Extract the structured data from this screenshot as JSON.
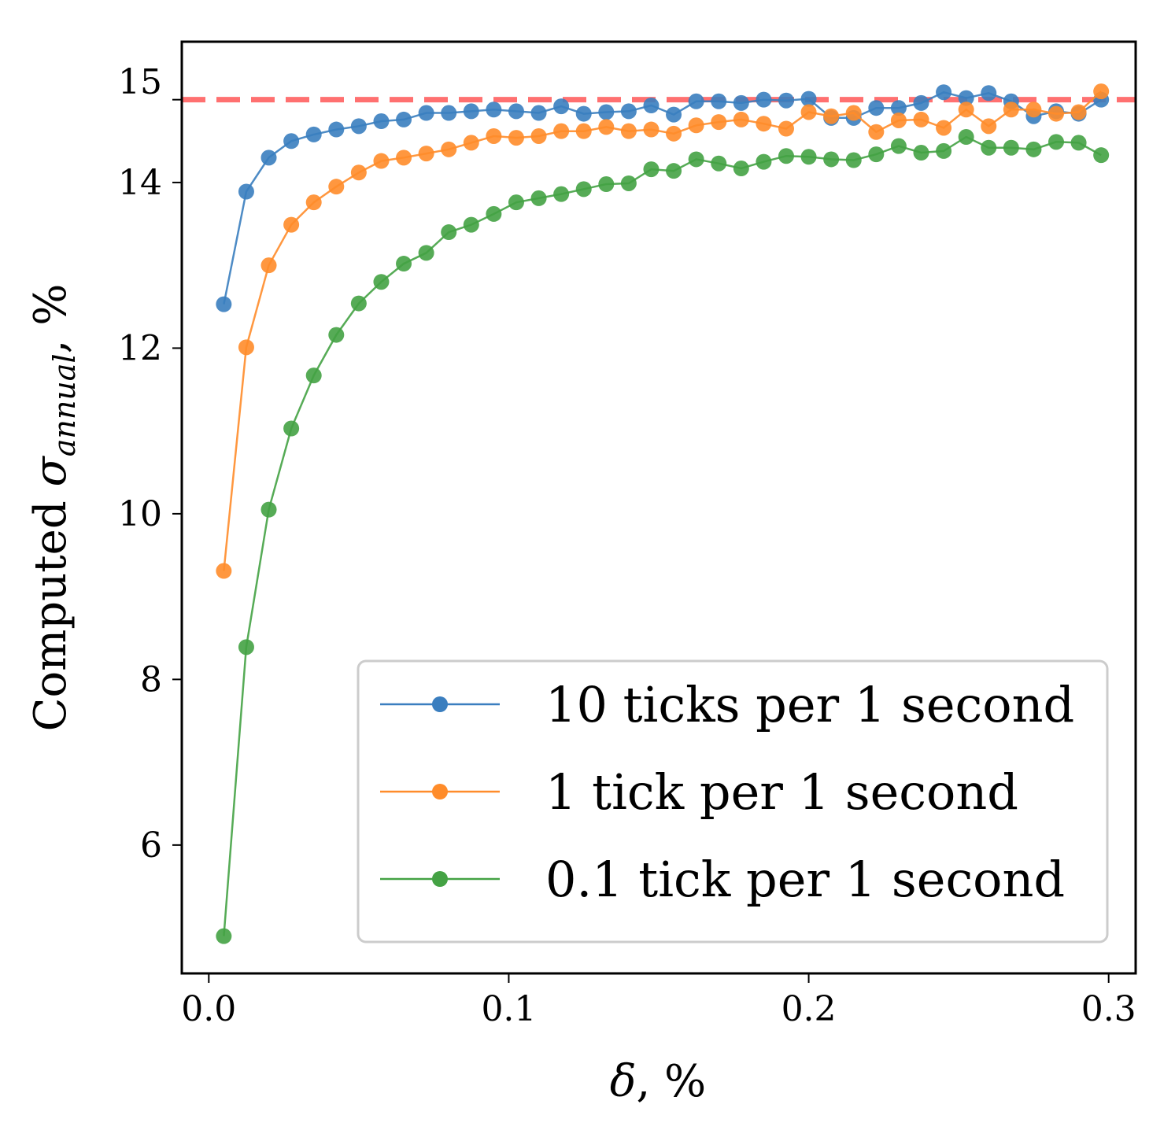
{
  "chart_data": {
    "type": "line",
    "xlabel_symbol": "δ",
    "xlabel_suffix": ", %",
    "ylabel_prefix": "Computed ",
    "ylabel_symbol": "σ",
    "ylabel_subscript": "annual",
    "ylabel_suffix": ", %",
    "xlim": [
      -0.009,
      0.309
    ],
    "ylim": [
      4.45,
      15.7
    ],
    "xticks": [
      0.0,
      0.1,
      0.2,
      0.3
    ],
    "xtick_labels": [
      "0.0",
      "0.1",
      "0.2",
      "0.3"
    ],
    "yticks": [
      6,
      8,
      10,
      12,
      14
    ],
    "ytick_labels": [
      "6",
      "8",
      "10",
      "12",
      "14"
    ],
    "reference_line": {
      "y": 15,
      "label": "15",
      "color": "#ff7070",
      "label_color": "#ff0000",
      "style": "dashed"
    },
    "legend_position": "lower-right",
    "x": [
      0.005,
      0.0125,
      0.02,
      0.0275,
      0.035,
      0.0425,
      0.05,
      0.0575,
      0.065,
      0.0725,
      0.08,
      0.0875,
      0.095,
      0.1025,
      0.11,
      0.1175,
      0.125,
      0.1325,
      0.14,
      0.1475,
      0.155,
      0.1625,
      0.17,
      0.1775,
      0.185,
      0.1925,
      0.2,
      0.2075,
      0.215,
      0.2225,
      0.23,
      0.2375,
      0.245,
      0.2525,
      0.26,
      0.2675,
      0.275,
      0.2825,
      0.29,
      0.2975
    ],
    "series": [
      {
        "name": "10 ticks per 1 second",
        "color": "#3a7ebf",
        "values": [
          12.53,
          13.89,
          14.3,
          14.5,
          14.58,
          14.64,
          14.68,
          14.74,
          14.76,
          14.84,
          14.84,
          14.86,
          14.88,
          14.86,
          14.84,
          14.92,
          14.83,
          14.85,
          14.86,
          14.93,
          14.82,
          14.98,
          14.98,
          14.96,
          15.0,
          14.99,
          15.01,
          14.78,
          14.78,
          14.9,
          14.9,
          14.96,
          15.09,
          15.02,
          15.08,
          14.98,
          14.8,
          14.86,
          14.83,
          15.0
        ]
      },
      {
        "name": "1 tick per 1 second",
        "color": "#ff8c2a",
        "values": [
          9.31,
          12.01,
          13.0,
          13.49,
          13.76,
          13.95,
          14.12,
          14.26,
          14.3,
          14.35,
          14.4,
          14.48,
          14.56,
          14.54,
          14.56,
          14.62,
          14.62,
          14.67,
          14.62,
          14.64,
          14.59,
          14.69,
          14.73,
          14.76,
          14.71,
          14.65,
          14.85,
          14.8,
          14.84,
          14.61,
          14.75,
          14.76,
          14.66,
          14.88,
          14.68,
          14.88,
          14.88,
          14.83,
          14.85,
          15.1
        ]
      },
      {
        "name": "0.1 tick per 1 second",
        "color": "#44a244",
        "values": [
          4.9,
          8.39,
          10.05,
          11.03,
          11.67,
          12.16,
          12.54,
          12.8,
          13.02,
          13.15,
          13.4,
          13.49,
          13.62,
          13.76,
          13.81,
          13.86,
          13.92,
          13.98,
          13.99,
          14.16,
          14.14,
          14.28,
          14.23,
          14.17,
          14.25,
          14.32,
          14.31,
          14.28,
          14.27,
          14.34,
          14.44,
          14.36,
          14.38,
          14.55,
          14.42,
          14.42,
          14.4,
          14.49,
          14.48,
          14.33
        ]
      }
    ]
  }
}
